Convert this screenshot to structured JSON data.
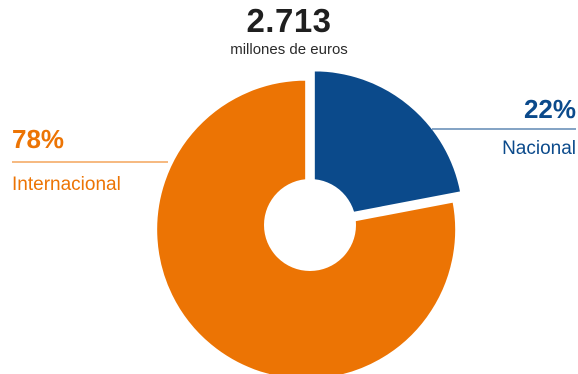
{
  "header": {
    "total": "2.713",
    "unit": "millones de euros"
  },
  "chart_data": {
    "type": "pie",
    "variant": "donut",
    "slices": [
      {
        "label": "Nacional",
        "value": 22,
        "display": "22%",
        "color": "#0b4a8b"
      },
      {
        "label": "Internacional",
        "value": 78,
        "display": "78%",
        "color": "#ec7404"
      }
    ],
    "legend_placement": "labels-beside-slices",
    "title": "2.713",
    "subtitle": "millones de euros"
  }
}
